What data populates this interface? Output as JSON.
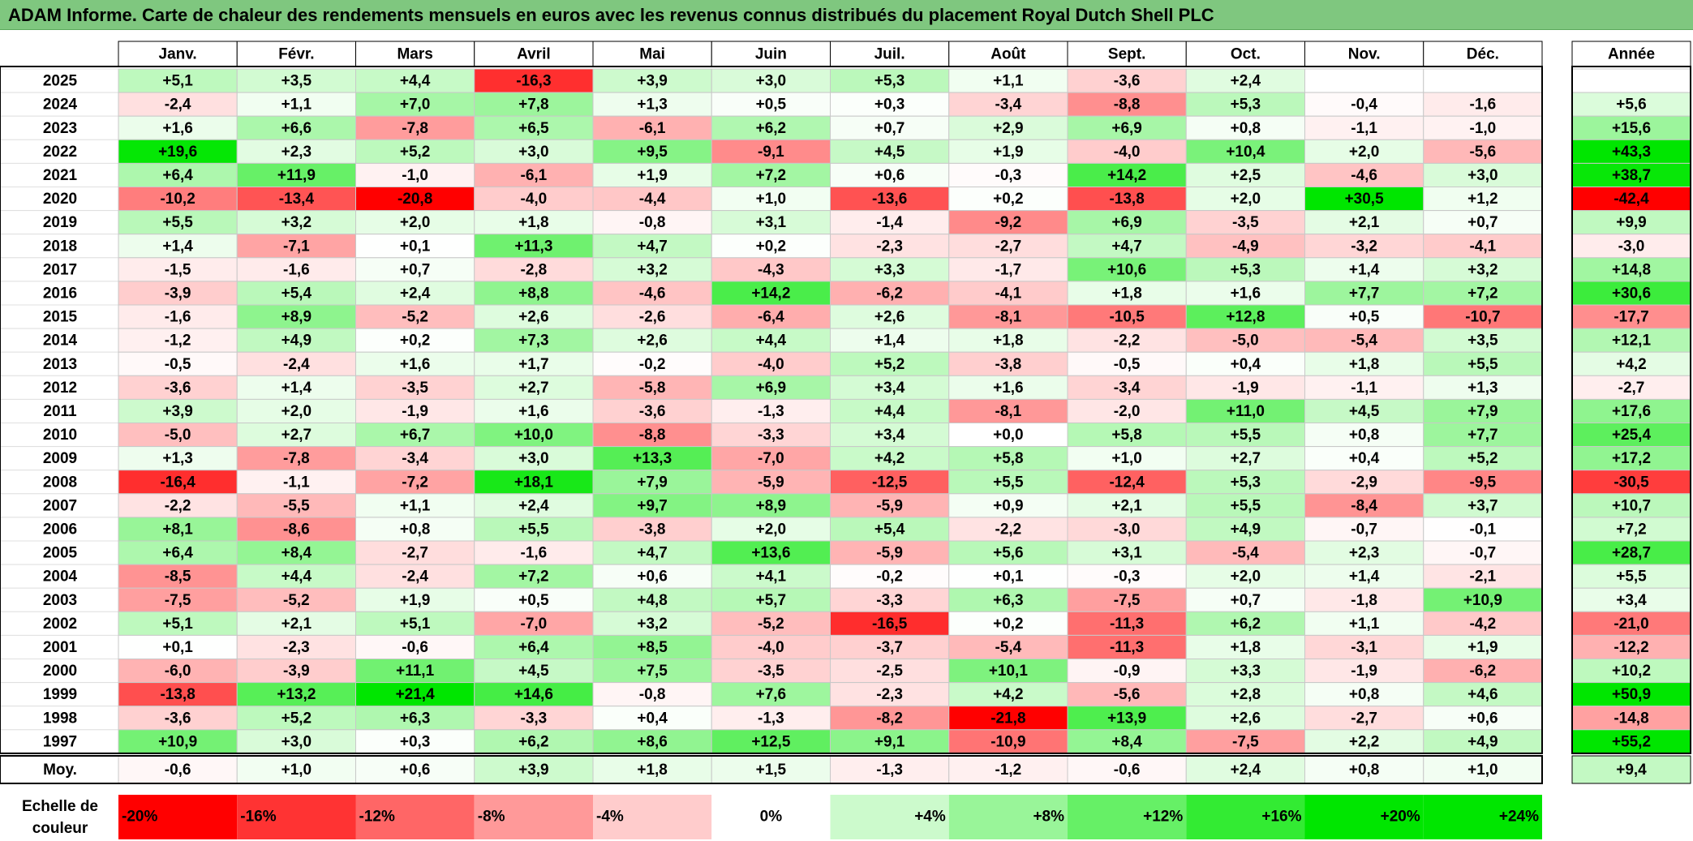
{
  "title": "ADAM Informe. Carte de chaleur des rendements mensuels en euros avec les revenus connus distribués du placement Royal Dutch Shell PLC",
  "chart_data": {
    "type": "heatmap",
    "columns": [
      "Janv.",
      "Févr.",
      "Mars",
      "Avril",
      "Mai",
      "Juin",
      "Juil.",
      "Août",
      "Sept.",
      "Oct.",
      "Nov.",
      "Déc."
    ],
    "annual_header": "Année",
    "rows": [
      {
        "year": "2025",
        "values": [
          "+5,1",
          "+3,5",
          "+4,4",
          "-16,3",
          "+3,9",
          "+3,0",
          "+5,3",
          "+1,1",
          "-3,6",
          "+2,4",
          "",
          ""
        ],
        "annual": ""
      },
      {
        "year": "2024",
        "values": [
          "-2,4",
          "+1,1",
          "+7,0",
          "+7,8",
          "+1,3",
          "+0,5",
          "+0,3",
          "-3,4",
          "-8,8",
          "+5,3",
          "-0,4",
          "-1,6"
        ],
        "annual": "+5,6"
      },
      {
        "year": "2023",
        "values": [
          "+1,6",
          "+6,6",
          "-7,8",
          "+6,5",
          "-6,1",
          "+6,2",
          "+0,7",
          "+2,9",
          "+6,9",
          "+0,8",
          "-1,1",
          "-1,0"
        ],
        "annual": "+15,6"
      },
      {
        "year": "2022",
        "values": [
          "+19,6",
          "+2,3",
          "+5,2",
          "+3,0",
          "+9,5",
          "-9,1",
          "+4,5",
          "+1,9",
          "-4,0",
          "+10,4",
          "+2,0",
          "-5,6"
        ],
        "annual": "+43,3"
      },
      {
        "year": "2021",
        "values": [
          "+6,4",
          "+11,9",
          "-1,0",
          "-6,1",
          "+1,9",
          "+7,2",
          "+0,6",
          "-0,3",
          "+14,2",
          "+2,5",
          "-4,6",
          "+3,0"
        ],
        "annual": "+38,7"
      },
      {
        "year": "2020",
        "values": [
          "-10,2",
          "-13,4",
          "-20,8",
          "-4,0",
          "-4,4",
          "+1,0",
          "-13,6",
          "+0,2",
          "-13,8",
          "+2,0",
          "+30,5",
          "+1,2"
        ],
        "annual": "-42,4"
      },
      {
        "year": "2019",
        "values": [
          "+5,5",
          "+3,2",
          "+2,0",
          "+1,8",
          "-0,8",
          "+3,1",
          "-1,4",
          "-9,2",
          "+6,9",
          "-3,5",
          "+2,1",
          "+0,7"
        ],
        "annual": "+9,9"
      },
      {
        "year": "2018",
        "values": [
          "+1,4",
          "-7,1",
          "+0,1",
          "+11,3",
          "+4,7",
          "+0,2",
          "-2,3",
          "-2,7",
          "+4,7",
          "-4,9",
          "-3,2",
          "-4,1"
        ],
        "annual": "-3,0"
      },
      {
        "year": "2017",
        "values": [
          "-1,5",
          "-1,6",
          "+0,7",
          "-2,8",
          "+3,2",
          "-4,3",
          "+3,3",
          "-1,7",
          "+10,6",
          "+5,3",
          "+1,4",
          "+3,2"
        ],
        "annual": "+14,8"
      },
      {
        "year": "2016",
        "values": [
          "-3,9",
          "+5,4",
          "+2,4",
          "+8,8",
          "-4,6",
          "+14,2",
          "-6,2",
          "-4,1",
          "+1,8",
          "+1,6",
          "+7,7",
          "+7,2"
        ],
        "annual": "+30,6"
      },
      {
        "year": "2015",
        "values": [
          "-1,6",
          "+8,9",
          "-5,2",
          "+2,6",
          "-2,6",
          "-6,4",
          "+2,6",
          "-8,1",
          "-10,5",
          "+12,8",
          "+0,5",
          "-10,7"
        ],
        "annual": "-17,7"
      },
      {
        "year": "2014",
        "values": [
          "-1,2",
          "+4,9",
          "+0,2",
          "+7,3",
          "+2,6",
          "+4,4",
          "+1,4",
          "+1,8",
          "-2,2",
          "-5,0",
          "-5,4",
          "+3,5"
        ],
        "annual": "+12,1"
      },
      {
        "year": "2013",
        "values": [
          "-0,5",
          "-2,4",
          "+1,6",
          "+1,7",
          "-0,2",
          "-4,0",
          "+5,2",
          "-3,8",
          "-0,5",
          "+0,4",
          "+1,8",
          "+5,5"
        ],
        "annual": "+4,2"
      },
      {
        "year": "2012",
        "values": [
          "-3,6",
          "+1,4",
          "-3,5",
          "+2,7",
          "-5,8",
          "+6,9",
          "+3,4",
          "+1,6",
          "-3,4",
          "-1,9",
          "-1,1",
          "+1,3"
        ],
        "annual": "-2,7"
      },
      {
        "year": "2011",
        "values": [
          "+3,9",
          "+2,0",
          "-1,9",
          "+1,6",
          "-3,6",
          "-1,3",
          "+4,4",
          "-8,1",
          "-2,0",
          "+11,0",
          "+4,5",
          "+7,9"
        ],
        "annual": "+17,6"
      },
      {
        "year": "2010",
        "values": [
          "-5,0",
          "+2,7",
          "+6,7",
          "+10,0",
          "-8,8",
          "-3,3",
          "+3,4",
          "+0,0",
          "+5,8",
          "+5,5",
          "+0,8",
          "+7,7"
        ],
        "annual": "+25,4"
      },
      {
        "year": "2009",
        "values": [
          "+1,3",
          "-7,8",
          "-3,4",
          "+3,0",
          "+13,3",
          "-7,0",
          "+4,2",
          "+5,8",
          "+1,0",
          "+2,7",
          "+0,4",
          "+5,2"
        ],
        "annual": "+17,2"
      },
      {
        "year": "2008",
        "values": [
          "-16,4",
          "-1,1",
          "-7,2",
          "+18,1",
          "+7,9",
          "-5,9",
          "-12,5",
          "+5,5",
          "-12,4",
          "+5,3",
          "-2,9",
          "-9,5"
        ],
        "annual": "-30,5"
      },
      {
        "year": "2007",
        "values": [
          "-2,2",
          "-5,5",
          "+1,1",
          "+2,4",
          "+9,7",
          "+8,9",
          "-5,9",
          "+0,9",
          "+2,1",
          "+5,5",
          "-8,4",
          "+3,7"
        ],
        "annual": "+10,7"
      },
      {
        "year": "2006",
        "values": [
          "+8,1",
          "-8,6",
          "+0,8",
          "+5,5",
          "-3,8",
          "+2,0",
          "+5,4",
          "-2,2",
          "-3,0",
          "+4,9",
          "-0,7",
          "-0,1"
        ],
        "annual": "+7,2"
      },
      {
        "year": "2005",
        "values": [
          "+6,4",
          "+8,4",
          "-2,7",
          "-1,6",
          "+4,7",
          "+13,6",
          "-5,9",
          "+5,6",
          "+3,1",
          "-5,4",
          "+2,3",
          "-0,7"
        ],
        "annual": "+28,7"
      },
      {
        "year": "2004",
        "values": [
          "-8,5",
          "+4,4",
          "-2,4",
          "+7,2",
          "+0,6",
          "+4,1",
          "-0,2",
          "+0,1",
          "-0,3",
          "+2,0",
          "+1,4",
          "-2,1"
        ],
        "annual": "+5,5"
      },
      {
        "year": "2003",
        "values": [
          "-7,5",
          "-5,2",
          "+1,9",
          "+0,5",
          "+4,8",
          "+5,7",
          "-3,3",
          "+6,3",
          "-7,5",
          "+0,7",
          "-1,8",
          "+10,9"
        ],
        "annual": "+3,4"
      },
      {
        "year": "2002",
        "values": [
          "+5,1",
          "+2,1",
          "+5,1",
          "-7,0",
          "+3,2",
          "-5,2",
          "-16,5",
          "+0,2",
          "-11,3",
          "+6,2",
          "+1,1",
          "-4,2"
        ],
        "annual": "-21,0"
      },
      {
        "year": "2001",
        "values": [
          "+0,1",
          "-2,3",
          "-0,6",
          "+6,4",
          "+8,5",
          "-4,0",
          "-3,7",
          "-5,4",
          "-11,3",
          "+1,8",
          "-3,1",
          "+1,9"
        ],
        "annual": "-12,2"
      },
      {
        "year": "2000",
        "values": [
          "-6,0",
          "-3,9",
          "+11,1",
          "+4,5",
          "+7,5",
          "-3,5",
          "-2,5",
          "+10,1",
          "-0,9",
          "+3,3",
          "-1,9",
          "-6,2"
        ],
        "annual": "+10,2"
      },
      {
        "year": "1999",
        "values": [
          "-13,8",
          "+13,2",
          "+21,4",
          "+14,6",
          "-0,8",
          "+7,6",
          "-2,3",
          "+4,2",
          "-5,6",
          "+2,8",
          "+0,8",
          "+4,6"
        ],
        "annual": "+50,9"
      },
      {
        "year": "1998",
        "values": [
          "-3,6",
          "+5,2",
          "+6,3",
          "-3,3",
          "+0,4",
          "-1,3",
          "-8,2",
          "-21,8",
          "+13,9",
          "+2,6",
          "-2,7",
          "+0,6"
        ],
        "annual": "-14,8"
      },
      {
        "year": "1997",
        "values": [
          "+10,9",
          "+3,0",
          "+0,3",
          "+6,2",
          "+8,6",
          "+12,5",
          "+9,1",
          "-10,9",
          "+8,4",
          "-7,5",
          "+2,2",
          "+4,9"
        ],
        "annual": "+55,2"
      }
    ],
    "average": {
      "label": "Moy.",
      "values": [
        "-0,6",
        "+1,0",
        "+0,6",
        "+3,9",
        "+1,8",
        "+1,5",
        "-1,3",
        "-1,2",
        "-0,6",
        "+2,4",
        "+0,8",
        "+1,0"
      ],
      "annual": "+9,4"
    },
    "color_scale": {
      "label_line1": "Echelle de",
      "label_line2": "couleur",
      "stops": [
        "-20%",
        "-16%",
        "-12%",
        "-8%",
        "-4%",
        "0%",
        "+4%",
        "+8%",
        "+12%",
        "+16%",
        "+20%",
        "+24%"
      ],
      "stop_values": [
        -20,
        -16,
        -12,
        -8,
        -4,
        0,
        4,
        8,
        12,
        16,
        20,
        24
      ]
    },
    "colors": {
      "negative_max": "#ff0000",
      "neutral": "#ffffff",
      "positive_max": "#00e600",
      "banner": "#7fc77f"
    }
  }
}
